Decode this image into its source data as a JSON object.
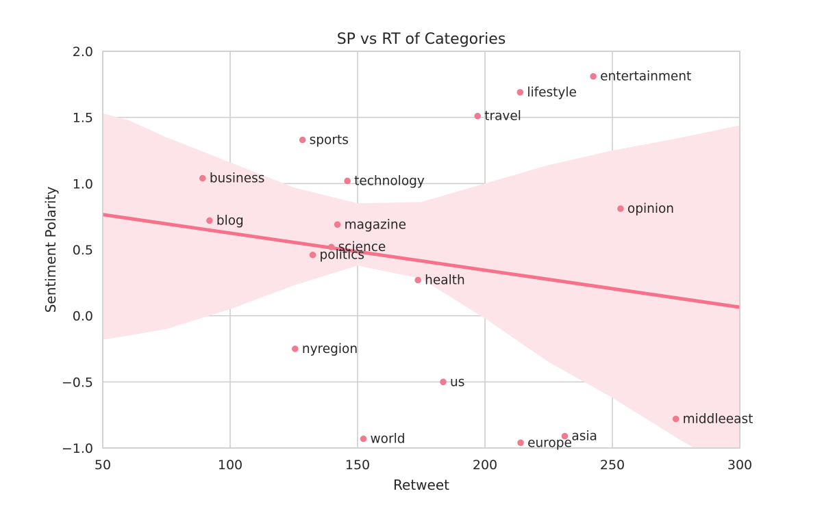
{
  "chart_data": {
    "type": "scatter",
    "title": "SP vs RT of Categories",
    "xlabel": "Retweet",
    "ylabel": "Sentiment Polarity",
    "xlim": [
      50,
      300
    ],
    "ylim": [
      -1.0,
      2.0
    ],
    "xticks": [
      50,
      100,
      150,
      200,
      250,
      300
    ],
    "xtick_labels": [
      "50",
      "100",
      "150",
      "200",
      "250",
      "300"
    ],
    "yticks": [
      -1.0,
      -0.5,
      0.0,
      0.5,
      1.0,
      1.5,
      2.0
    ],
    "ytick_labels": [
      "−1.0",
      "−0.5",
      "0.0",
      "0.5",
      "1.0",
      "1.5",
      "2.0"
    ],
    "grid": true,
    "colors": {
      "points": "#f07b8e",
      "line": "#f7718a",
      "band": "#fce4e9",
      "grid": "#cccccc"
    },
    "points": [
      {
        "label": "entertainment",
        "x": 242.5,
        "y": 1.81
      },
      {
        "label": "lifestyle",
        "x": 213.8,
        "y": 1.69
      },
      {
        "label": "travel",
        "x": 197.1,
        "y": 1.51
      },
      {
        "label": "sports",
        "x": 128.4,
        "y": 1.33
      },
      {
        "label": "business",
        "x": 89.2,
        "y": 1.04
      },
      {
        "label": "technology",
        "x": 146.0,
        "y": 1.02
      },
      {
        "label": "opinion",
        "x": 253.2,
        "y": 0.81
      },
      {
        "label": "blog",
        "x": 91.9,
        "y": 0.72
      },
      {
        "label": "magazine",
        "x": 142.1,
        "y": 0.69
      },
      {
        "label": "science",
        "x": 139.7,
        "y": 0.52
      },
      {
        "label": "politics",
        "x": 132.4,
        "y": 0.46
      },
      {
        "label": "health",
        "x": 173.7,
        "y": 0.27
      },
      {
        "label": "nyregion",
        "x": 125.5,
        "y": -0.25
      },
      {
        "label": "us",
        "x": 183.6,
        "y": -0.5
      },
      {
        "label": "middleeast",
        "x": 274.9,
        "y": -0.78
      },
      {
        "label": "asia",
        "x": 231.3,
        "y": -0.91
      },
      {
        "label": "world",
        "x": 152.3,
        "y": -0.93
      },
      {
        "label": "europe",
        "x": 214.0,
        "y": -0.96
      }
    ],
    "regression": {
      "x": [
        50,
        300
      ],
      "y": [
        0.765,
        0.065
      ]
    },
    "confidence_band": {
      "x": [
        50,
        60,
        75,
        100,
        125,
        150,
        175,
        200,
        225,
        250,
        275,
        300
      ],
      "upper": [
        1.53,
        1.48,
        1.35,
        1.16,
        0.97,
        0.85,
        0.86,
        1.0,
        1.14,
        1.25,
        1.34,
        1.44
      ],
      "lower": [
        -0.18,
        -0.15,
        -0.1,
        0.05,
        0.23,
        0.38,
        0.28,
        -0.02,
        -0.35,
        -0.62,
        -0.92,
        -1.2
      ]
    }
  }
}
